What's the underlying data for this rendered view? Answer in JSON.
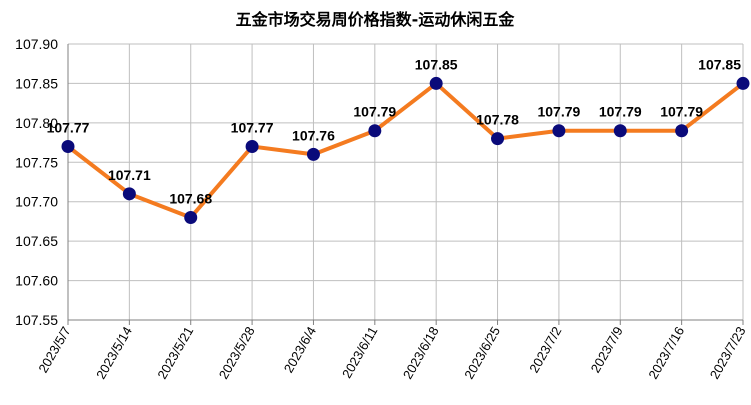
{
  "chart_data": {
    "type": "line",
    "title": "五金市场交易周价格指数-运动休闲五金",
    "xlabel": "",
    "ylabel": "",
    "categories": [
      "2023/5/7",
      "2023/5/14",
      "2023/5/21",
      "2023/5/28",
      "2023/6/4",
      "2023/6/11",
      "2023/6/18",
      "2023/6/25",
      "2023/7/2",
      "2023/7/9",
      "2023/7/16",
      "2023/7/23"
    ],
    "series": [
      {
        "values": [
          107.77,
          107.71,
          107.68,
          107.77,
          107.76,
          107.79,
          107.85,
          107.78,
          107.79,
          107.79,
          107.79,
          107.85
        ],
        "labels": [
          "107.77",
          "107.71",
          "107.68",
          "107.77",
          "107.76",
          "107.79",
          "107.85",
          "107.78",
          "107.79",
          "107.79",
          "107.79",
          "107.85"
        ]
      }
    ],
    "ylim": [
      107.55,
      107.9
    ],
    "yticks": [
      "107.90",
      "107.85",
      "107.80",
      "107.75",
      "107.70",
      "107.65",
      "107.60",
      "107.55"
    ],
    "grid": true,
    "legend": "none",
    "colors": {
      "line": "#F47B20",
      "marker": "#0A0A7A",
      "grid": "#BFBFBF",
      "axis": "#808080"
    }
  }
}
